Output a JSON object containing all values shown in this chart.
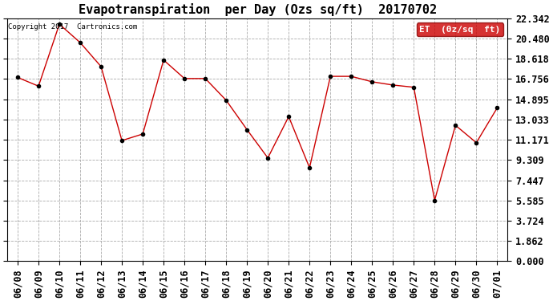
{
  "title": "Evapotranspiration  per Day (Ozs sq/ft)  20170702",
  "copyright": "Copyright 2017  Cartronics.com",
  "legend_label": "ET  (0z/sq  ft)",
  "x_labels": [
    "06/08",
    "06/09",
    "06/10",
    "06/11",
    "06/12",
    "06/13",
    "06/14",
    "06/15",
    "06/16",
    "06/17",
    "06/18",
    "06/19",
    "06/20",
    "06/21",
    "06/22",
    "06/23",
    "06/24",
    "06/25",
    "06/26",
    "06/27",
    "06/28",
    "06/29",
    "06/30",
    "07/01"
  ],
  "y_values": [
    16.9,
    16.1,
    21.8,
    20.1,
    17.9,
    11.1,
    11.7,
    18.5,
    16.8,
    16.8,
    14.8,
    12.1,
    9.5,
    13.3,
    8.6,
    17.0,
    17.0,
    16.5,
    16.2,
    16.0,
    5.6,
    12.5,
    10.9,
    14.1
  ],
  "line_color": "#cc0000",
  "marker_color": "#000000",
  "bg_color": "#ffffff",
  "grid_color": "#aaaaaa",
  "y_ticks": [
    0.0,
    1.862,
    3.724,
    5.585,
    7.447,
    9.309,
    11.171,
    13.033,
    14.895,
    16.756,
    18.618,
    20.48,
    22.342
  ],
  "ylim": [
    0.0,
    22.342
  ],
  "title_fontsize": 11,
  "tick_fontsize": 8.5,
  "copyright_fontsize": 6.5,
  "legend_bg": "#cc0000",
  "legend_text_color": "#ffffff",
  "legend_fontsize": 8
}
